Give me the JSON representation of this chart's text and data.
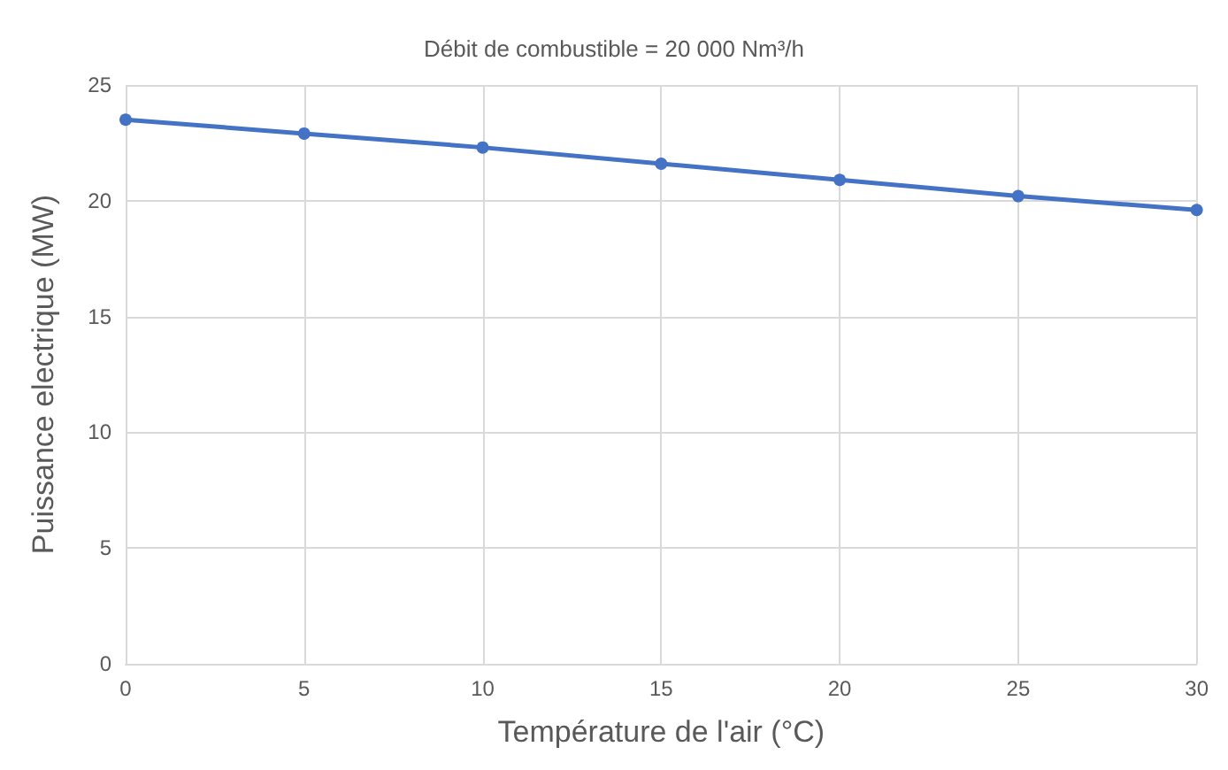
{
  "chart_data": {
    "type": "line",
    "title": "Débit de combustible = 20 000 Nm³/h",
    "xlabel": "Température de l'air (°C)",
    "ylabel": "Puissance electrique (MW)",
    "x": [
      0,
      5,
      10,
      15,
      20,
      25,
      30
    ],
    "series": [
      {
        "color": "#4472c4",
        "values": [
          23.5,
          22.9,
          22.3,
          21.6,
          20.9,
          20.2,
          19.6
        ]
      }
    ],
    "xlim": [
      0,
      30
    ],
    "xticks": [
      0,
      5,
      10,
      15,
      20,
      25,
      30
    ],
    "ylim": [
      0,
      25
    ],
    "yticks": [
      0,
      5,
      10,
      15,
      20,
      25
    ],
    "grid": true,
    "marker": "circle",
    "line_style": "solid"
  }
}
